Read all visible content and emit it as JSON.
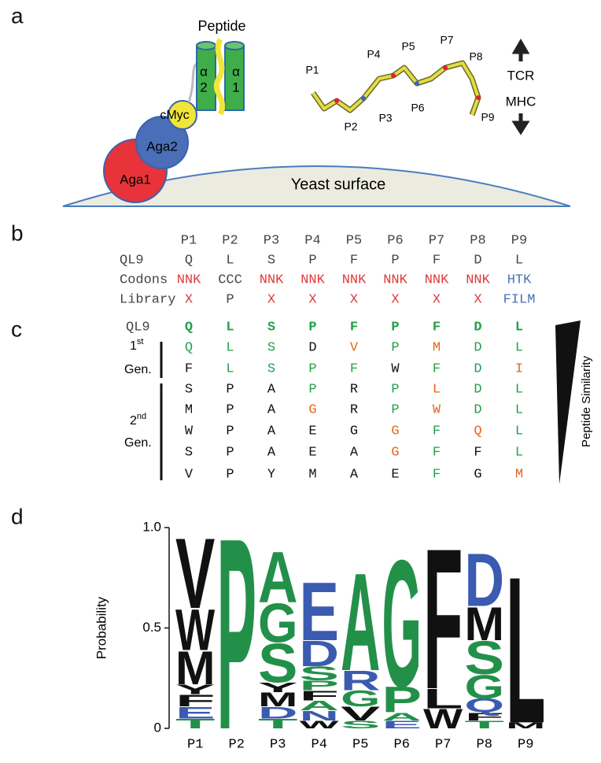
{
  "panel_a": {
    "label": "a",
    "peptide_label": "Peptide",
    "helix_labels": [
      {
        "alpha": "α",
        "number": "2"
      },
      {
        "alpha": "α",
        "number": "1"
      }
    ],
    "domains": [
      "cMyc",
      "Aga2",
      "Aga1"
    ],
    "surface": "Yeast surface",
    "residues": [
      "P1",
      "P2",
      "P3",
      "P4",
      "P5",
      "P6",
      "P7",
      "P8",
      "P9"
    ],
    "directions": [
      "TCR",
      "MHC"
    ]
  },
  "panel_b": {
    "label": "b",
    "header": [
      "P1",
      "P2",
      "P3",
      "P4",
      "P5",
      "P6",
      "P7",
      "P8",
      "P9"
    ],
    "rows": [
      {
        "name": "QL9",
        "cells": [
          "Q",
          "L",
          "S",
          "P",
          "F",
          "P",
          "F",
          "D",
          "L"
        ],
        "colors": [
          "#444",
          "#444",
          "#444",
          "#444",
          "#444",
          "#444",
          "#444",
          "#444",
          "#444"
        ]
      },
      {
        "name": "Codons",
        "cells": [
          "NNK",
          "CCC",
          "NNK",
          "NNK",
          "NNK",
          "NNK",
          "NNK",
          "NNK",
          "HTK"
        ],
        "colors": [
          "#e03a3a",
          "#444",
          "#e03a3a",
          "#e03a3a",
          "#e03a3a",
          "#e03a3a",
          "#e03a3a",
          "#e03a3a",
          "#4a6fb8"
        ]
      },
      {
        "name": "Library",
        "cells": [
          "X",
          "P",
          "X",
          "X",
          "X",
          "X",
          "X",
          "X",
          "FILM"
        ],
        "colors": [
          "#e03a3a",
          "#444",
          "#e03a3a",
          "#e03a3a",
          "#e03a3a",
          "#e03a3a",
          "#e03a3a",
          "#e03a3a",
          "#4a6fb8"
        ]
      }
    ]
  },
  "panel_c": {
    "label": "c",
    "reference": {
      "name": "QL9",
      "cells": [
        "Q",
        "L",
        "S",
        "P",
        "F",
        "P",
        "F",
        "D",
        "L"
      ],
      "colors": [
        "#23a04a",
        "#23a04a",
        "#23a04a",
        "#23a04a",
        "#23a04a",
        "#23a04a",
        "#23a04a",
        "#23a04a",
        "#23a04a"
      ]
    },
    "groups": [
      {
        "ordinal": "1",
        "suffix": "st",
        "name": "Gen.",
        "rows": [
          {
            "cells": [
              "Q",
              "L",
              "S",
              "D",
              "V",
              "P",
              "M",
              "D",
              "L"
            ],
            "colors": [
              "#23a04a",
              "#23a04a",
              "#23a04a",
              "#111",
              "#e8641b",
              "#23a04a",
              "#e8641b",
              "#23a04a",
              "#23a04a"
            ]
          },
          {
            "cells": [
              "F",
              "L",
              "S",
              "P",
              "F",
              "W",
              "F",
              "D",
              "I"
            ],
            "colors": [
              "#111",
              "#23a04a",
              "#23a04a",
              "#23a04a",
              "#23a04a",
              "#111",
              "#23a04a",
              "#23a04a",
              "#e8641b"
            ]
          }
        ]
      },
      {
        "ordinal": "2",
        "suffix": "nd",
        "name": "Gen.",
        "rows": [
          {
            "cells": [
              "S",
              "P",
              "A",
              "P",
              "R",
              "P",
              "L",
              "D",
              "L"
            ],
            "colors": [
              "#111",
              "#111",
              "#111",
              "#23a04a",
              "#111",
              "#23a04a",
              "#e8641b",
              "#23a04a",
              "#23a04a"
            ]
          },
          {
            "cells": [
              "M",
              "P",
              "A",
              "G",
              "R",
              "P",
              "W",
              "D",
              "L"
            ],
            "colors": [
              "#111",
              "#111",
              "#111",
              "#e8641b",
              "#111",
              "#23a04a",
              "#e8641b",
              "#23a04a",
              "#23a04a"
            ]
          },
          {
            "cells": [
              "W",
              "P",
              "A",
              "E",
              "G",
              "G",
              "F",
              "Q",
              "L"
            ],
            "colors": [
              "#111",
              "#111",
              "#111",
              "#111",
              "#111",
              "#e8641b",
              "#23a04a",
              "#e8641b",
              "#23a04a"
            ]
          },
          {
            "cells": [
              "S",
              "P",
              "A",
              "E",
              "A",
              "G",
              "F",
              "F",
              "L"
            ],
            "colors": [
              "#111",
              "#111",
              "#111",
              "#111",
              "#111",
              "#e8641b",
              "#23a04a",
              "#111",
              "#23a04a"
            ]
          },
          {
            "cells": [
              "V",
              "P",
              "Y",
              "M",
              "A",
              "E",
              "F",
              "G",
              "M"
            ],
            "colors": [
              "#111",
              "#111",
              "#111",
              "#111",
              "#111",
              "#111",
              "#23a04a",
              "#111",
              "#e8641b"
            ]
          }
        ]
      }
    ],
    "similarity_label": "Peptide Similarity"
  },
  "chart_data": {
    "type": "logo",
    "panel_label": "d",
    "y_label": "Probability",
    "categories": [
      "P1",
      "P2",
      "P3",
      "P4",
      "P5",
      "P6",
      "P7",
      "P8",
      "P9"
    ],
    "ylim": [
      0,
      1.0
    ],
    "yticks": [
      0,
      0.5,
      {
        "value": 1.0,
        "label": "1.0"
      }
    ],
    "stacks": [
      [
        {
          "letter": "T",
          "value": 0.05,
          "color": "#23904a"
        },
        {
          "letter": "E",
          "value": 0.06,
          "color": "#3b5bb0"
        },
        {
          "letter": "F",
          "value": 0.06,
          "color": "#111"
        },
        {
          "letter": "Y",
          "value": 0.05,
          "color": "#111"
        },
        {
          "letter": "M",
          "value": 0.17,
          "color": "#111"
        },
        {
          "letter": "W",
          "value": 0.21,
          "color": "#111"
        },
        {
          "letter": "V",
          "value": 0.36,
          "color": "#111"
        }
      ],
      [
        {
          "letter": "P",
          "value": 0.98,
          "color": "#23904a"
        }
      ],
      [
        {
          "letter": "T",
          "value": 0.05,
          "color": "#23904a"
        },
        {
          "letter": "D",
          "value": 0.06,
          "color": "#3b5bb0"
        },
        {
          "letter": "M",
          "value": 0.07,
          "color": "#111"
        },
        {
          "letter": "Y",
          "value": 0.05,
          "color": "#111"
        },
        {
          "letter": "S",
          "value": 0.2,
          "color": "#23904a"
        },
        {
          "letter": "G",
          "value": 0.2,
          "color": "#23904a"
        },
        {
          "letter": "A",
          "value": 0.26,
          "color": "#23904a"
        }
      ],
      [
        {
          "letter": "W",
          "value": 0.04,
          "color": "#111"
        },
        {
          "letter": "N",
          "value": 0.05,
          "color": "#3b5bb0"
        },
        {
          "letter": "A",
          "value": 0.05,
          "color": "#23904a"
        },
        {
          "letter": "F",
          "value": 0.05,
          "color": "#111"
        },
        {
          "letter": "P",
          "value": 0.05,
          "color": "#23904a"
        },
        {
          "letter": "S",
          "value": 0.07,
          "color": "#23904a"
        },
        {
          "letter": "D",
          "value": 0.13,
          "color": "#3b5bb0"
        },
        {
          "letter": "E",
          "value": 0.3,
          "color": "#3b5bb0"
        }
      ],
      [
        {
          "letter": "S",
          "value": 0.04,
          "color": "#23904a"
        },
        {
          "letter": "V",
          "value": 0.07,
          "color": "#111"
        },
        {
          "letter": "G",
          "value": 0.08,
          "color": "#23904a"
        },
        {
          "letter": "R",
          "value": 0.1,
          "color": "#3b5bb0"
        },
        {
          "letter": "A",
          "value": 0.5,
          "color": "#23904a"
        }
      ],
      [
        {
          "letter": "E",
          "value": 0.04,
          "color": "#3b5bb0"
        },
        {
          "letter": "A",
          "value": 0.04,
          "color": "#23904a"
        },
        {
          "letter": "P",
          "value": 0.13,
          "color": "#23904a"
        },
        {
          "letter": "G",
          "value": 0.65,
          "color": "#23904a"
        }
      ],
      [
        {
          "letter": "W",
          "value": 0.1,
          "color": "#111"
        },
        {
          "letter": "L",
          "value": 0.1,
          "color": "#111"
        },
        {
          "letter": "F",
          "value": 0.72,
          "color": "#111"
        }
      ],
      [
        {
          "letter": "T",
          "value": 0.04,
          "color": "#23904a"
        },
        {
          "letter": "F",
          "value": 0.04,
          "color": "#111"
        },
        {
          "letter": "Q",
          "value": 0.07,
          "color": "#3b5bb0"
        },
        {
          "letter": "G",
          "value": 0.12,
          "color": "#23904a"
        },
        {
          "letter": "S",
          "value": 0.17,
          "color": "#23904a"
        },
        {
          "letter": "M",
          "value": 0.17,
          "color": "#111"
        },
        {
          "letter": "D",
          "value": 0.27,
          "color": "#3b5bb0"
        }
      ],
      [
        {
          "letter": "M",
          "value": 0.03,
          "color": "#111"
        },
        {
          "letter": "L",
          "value": 0.75,
          "color": "#111"
        }
      ]
    ]
  }
}
